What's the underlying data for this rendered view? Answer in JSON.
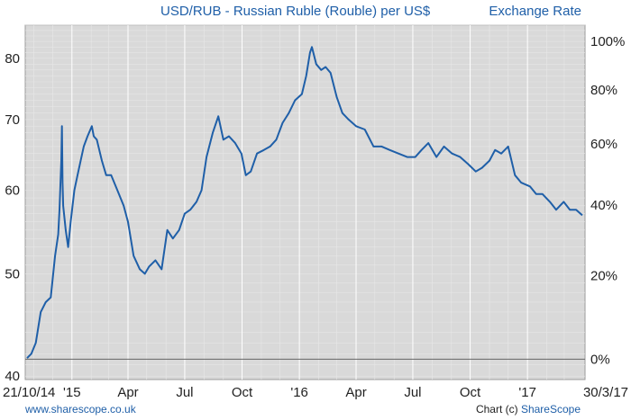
{
  "header": {
    "title": "USD/RUB - Russian Ruble (Rouble) per US$",
    "right_label": "Exchange Rate"
  },
  "footer": {
    "url": "www.sharescope.co.uk",
    "chart_prefix": "Chart (c) ",
    "brand": "ShareScope"
  },
  "colors": {
    "line": "#1f5fa8",
    "plot_bg": "#d9d9d9",
    "grid": "#ebebeb"
  },
  "chart_data": {
    "type": "line",
    "title": "USD/RUB - Russian Ruble (Rouble) per US$",
    "y_scale": "log",
    "ylim": [
      39.7,
      86
    ],
    "y_ticks": [
      40,
      50,
      60,
      70,
      80
    ],
    "y_right_ticks": [
      "0%",
      "20%",
      "40%",
      "60%",
      "80%",
      "100%"
    ],
    "y_right_values": [
      41.5,
      49.8,
      58.1,
      66.4,
      74.7,
      83.0
    ],
    "x_tick_labels": [
      "21/10/14",
      "'15",
      "Apr",
      "Jul",
      "Oct",
      "'16",
      "Apr",
      "Jul",
      "Oct",
      "'17",
      "30/3/17"
    ],
    "x_tick_dates": [
      "2014-10-21",
      "2015-01-01",
      "2015-04-01",
      "2015-07-01",
      "2015-10-01",
      "2016-01-01",
      "2016-04-01",
      "2016-07-01",
      "2016-10-01",
      "2017-01-01",
      "2017-03-30"
    ],
    "grid": true,
    "legend": "none",
    "series": [
      {
        "x": [
          "2014-10-21",
          "2014-10-28",
          "2014-11-04",
          "2014-11-12",
          "2014-11-20",
          "2014-11-28",
          "2014-12-05",
          "2014-12-10",
          "2014-12-12",
          "2014-12-15",
          "2014-12-16",
          "2014-12-17",
          "2014-12-18",
          "2014-12-22",
          "2014-12-26",
          "2014-12-30",
          "2015-01-05",
          "2015-01-10",
          "2015-01-15",
          "2015-01-20",
          "2015-01-26",
          "2015-02-02",
          "2015-02-05",
          "2015-02-10",
          "2015-02-18",
          "2015-02-25",
          "2015-03-05",
          "2015-03-15",
          "2015-03-25",
          "2015-04-01",
          "2015-04-10",
          "2015-04-20",
          "2015-04-28",
          "2015-05-05",
          "2015-05-15",
          "2015-05-25",
          "2015-06-03",
          "2015-06-12",
          "2015-06-22",
          "2015-07-01",
          "2015-07-10",
          "2015-07-20",
          "2015-07-28",
          "2015-08-05",
          "2015-08-15",
          "2015-08-24",
          "2015-09-01",
          "2015-09-10",
          "2015-09-20",
          "2015-09-30",
          "2015-10-07",
          "2015-10-15",
          "2015-10-25",
          "2015-11-05",
          "2015-11-15",
          "2015-11-25",
          "2015-12-05",
          "2015-12-15",
          "2015-12-25",
          "2016-01-05",
          "2016-01-12",
          "2016-01-18",
          "2016-01-21",
          "2016-01-28",
          "2016-02-05",
          "2016-02-12",
          "2016-02-20",
          "2016-03-01",
          "2016-03-10",
          "2016-03-20",
          "2016-04-01",
          "2016-04-15",
          "2016-04-29",
          "2016-05-12",
          "2016-05-25",
          "2016-06-08",
          "2016-06-22",
          "2016-07-05",
          "2016-07-15",
          "2016-07-26",
          "2016-08-08",
          "2016-08-20",
          "2016-09-02",
          "2016-09-15",
          "2016-09-28",
          "2016-10-10",
          "2016-10-20",
          "2016-11-01",
          "2016-11-10",
          "2016-11-20",
          "2016-12-01",
          "2016-12-12",
          "2016-12-22",
          "2017-01-05",
          "2017-01-15",
          "2017-01-25",
          "2017-02-06",
          "2017-02-16",
          "2017-02-28",
          "2017-03-10",
          "2017-03-20",
          "2017-03-30"
        ],
        "y": [
          41.6,
          42.0,
          43.0,
          46.0,
          47.0,
          47.5,
          52.0,
          54.5,
          57.5,
          64.0,
          69.0,
          61.0,
          58.0,
          55.0,
          53.0,
          56.0,
          60.0,
          62.0,
          64.0,
          66.0,
          67.5,
          69.0,
          67.5,
          67.0,
          64.0,
          62.0,
          62.0,
          60.0,
          58.0,
          56.0,
          52.0,
          50.5,
          50.0,
          50.8,
          51.5,
          50.5,
          55.0,
          54.0,
          55.0,
          57.0,
          57.5,
          58.5,
          60.0,
          64.5,
          68.0,
          70.5,
          67.0,
          67.5,
          66.5,
          65.0,
          62.0,
          62.5,
          65.0,
          65.5,
          66.0,
          67.0,
          69.5,
          71.0,
          73.0,
          74.0,
          77.0,
          81.0,
          82.0,
          79.0,
          78.0,
          78.5,
          77.5,
          73.5,
          71.0,
          70.0,
          69.0,
          68.5,
          66.0,
          66.0,
          65.5,
          65.0,
          64.5,
          64.5,
          65.5,
          66.5,
          64.5,
          66.0,
          65.0,
          64.5,
          63.5,
          62.5,
          63.0,
          64.0,
          65.5,
          65.0,
          66.0,
          62.0,
          61.0,
          60.5,
          59.5,
          59.5,
          58.5,
          57.5,
          58.5,
          57.5,
          57.5,
          56.8
        ]
      }
    ]
  }
}
